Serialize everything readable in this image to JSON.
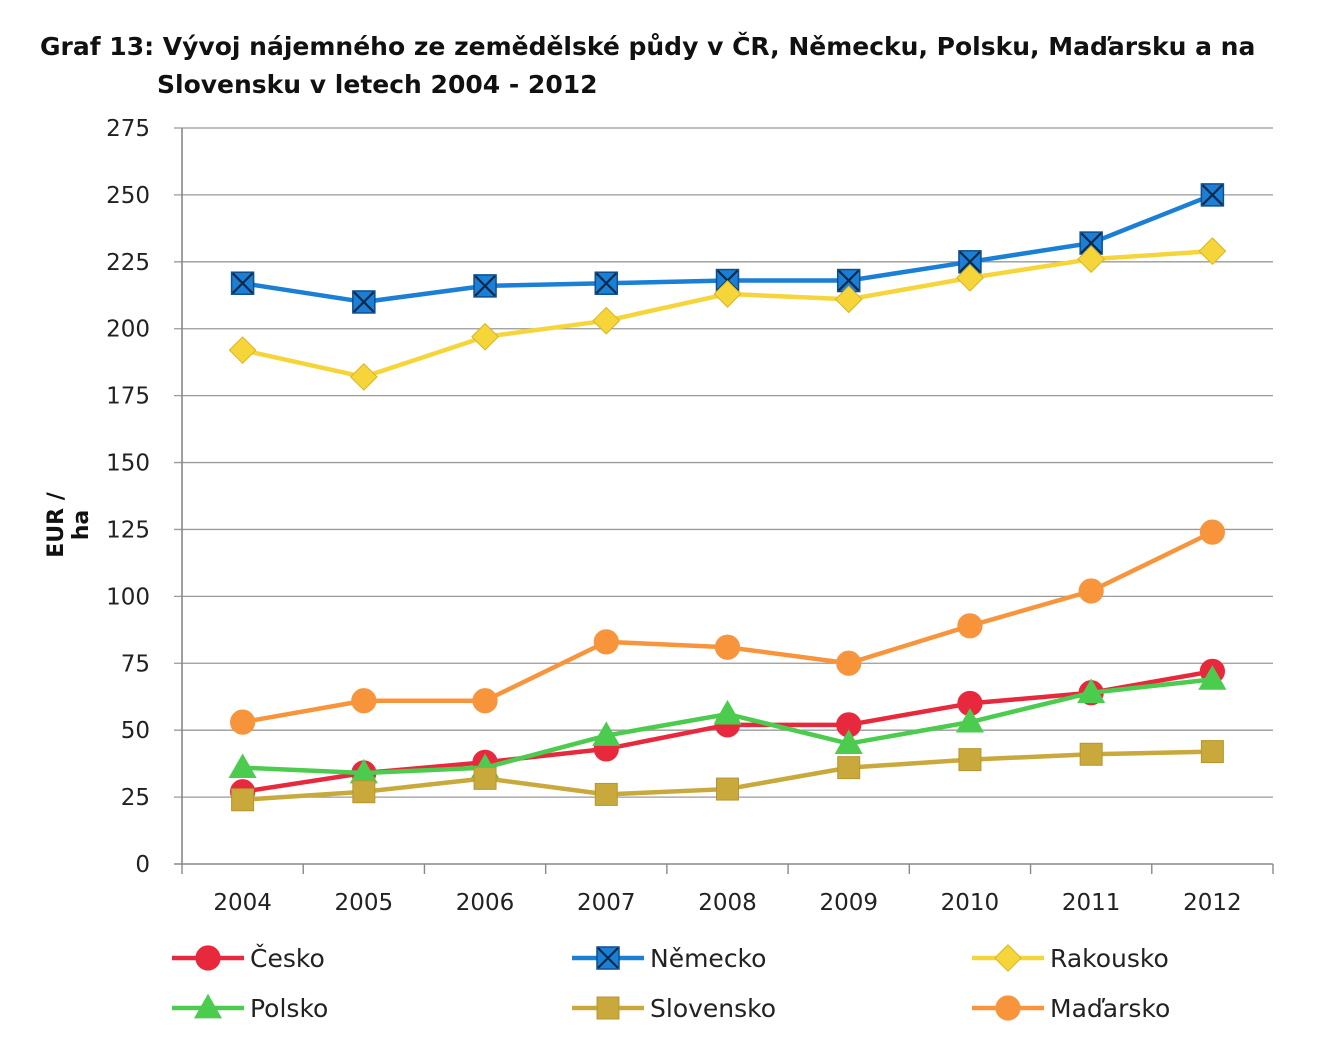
{
  "chart_data": {
    "type": "line",
    "title_line1": "Graf 13: Vývoj nájemného ze zemědělské půdy v ČR, Německu, Polsku, Maďarsku a na",
    "title_line2": "Slovensku v letech 2004 - 2012",
    "ylabel": "EUR / ha",
    "xlabel": "",
    "ylim": [
      0,
      275
    ],
    "yticks": [
      0,
      25,
      50,
      75,
      100,
      125,
      150,
      175,
      200,
      225,
      250,
      275
    ],
    "categories": [
      "2004",
      "2005",
      "2006",
      "2007",
      "2008",
      "2009",
      "2010",
      "2011",
      "2012"
    ],
    "grid": true,
    "legend_position": "bottom",
    "series": [
      {
        "name": "Česko",
        "color": "#e8283c",
        "marker": "circle",
        "values": [
          27,
          34,
          38,
          43,
          52,
          52,
          60,
          64,
          72
        ]
      },
      {
        "name": "Německo",
        "color": "#1b7fd6",
        "marker": "square-x",
        "values": [
          217,
          210,
          216,
          217,
          218,
          218,
          225,
          232,
          250
        ]
      },
      {
        "name": "Rakousko",
        "color": "#f6d53a",
        "marker": "diamond",
        "values": [
          192,
          182,
          197,
          203,
          213,
          211,
          219,
          226,
          229
        ]
      },
      {
        "name": "Polsko",
        "color": "#4ccc4f",
        "marker": "triangle",
        "values": [
          36,
          34,
          36,
          48,
          56,
          45,
          53,
          64,
          69
        ]
      },
      {
        "name": "Slovensko",
        "color": "#c9a93c",
        "marker": "square",
        "values": [
          24,
          27,
          32,
          26,
          28,
          36,
          39,
          41,
          42
        ]
      },
      {
        "name": "Maďarsko",
        "color": "#f8953c",
        "marker": "circle",
        "values": [
          53,
          61,
          61,
          83,
          81,
          75,
          89,
          102,
          124
        ]
      }
    ]
  }
}
